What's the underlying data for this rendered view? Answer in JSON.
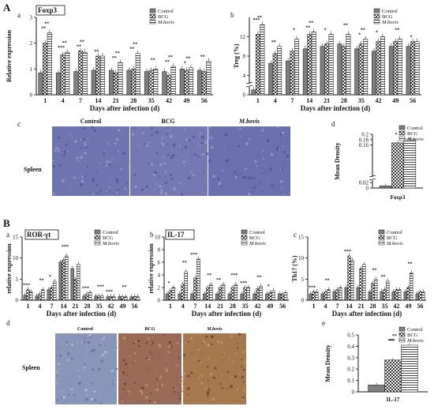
{
  "panel_letters": {
    "A": "A",
    "B": "B"
  },
  "sub_letters": {
    "Aa": "a",
    "Ab": "b",
    "Ac": "c",
    "Ad": "d",
    "Ba": "a",
    "Bb": "b",
    "Bc": "c",
    "Bd": "d",
    "Be": "e"
  },
  "histology": {
    "cols_A": [
      "Control",
      "BCG",
      "M.bovis"
    ],
    "cols_B": [
      "Control",
      "BCG",
      "M.bovis"
    ],
    "row_label": "Spleen",
    "colors": {
      "A": "#6e74b0",
      "B_control": "#8a96b8",
      "B_bcg": "#9a6a58",
      "B_mbovis": "#a6784e"
    }
  },
  "colors": {
    "control": "#7f7f7f",
    "bcg": "#ffffff",
    "mbovis": "#ffffff",
    "axis": "#111111"
  },
  "chart_data": [
    {
      "id": "Aa",
      "type": "bar",
      "title": "Foxp3",
      "xlabel": "Days after infection (d)",
      "ylabel": "Relative expression",
      "ylim": [
        0,
        3
      ],
      "yticks": [
        0,
        1,
        2,
        3
      ],
      "categories": [
        "1",
        "4",
        "7",
        "14",
        "21",
        "28",
        "35",
        "42",
        "49",
        "56"
      ],
      "legend": [
        "Control",
        "BCG",
        "M.bovis"
      ],
      "legend_position": "top-right",
      "series": [
        {
          "name": "Control",
          "values": [
            0.85,
            0.85,
            0.9,
            0.95,
            0.95,
            0.95,
            0.9,
            0.9,
            1.0,
            0.95
          ]
        },
        {
          "name": "BCG",
          "values": [
            2.0,
            1.55,
            1.7,
            1.5,
            0.85,
            1.0,
            0.95,
            0.75,
            0.95,
            0.9
          ]
        },
        {
          "name": "M.bovis",
          "values": [
            2.4,
            1.65,
            1.65,
            1.5,
            1.25,
            1.6,
            1.0,
            1.1,
            1.05,
            1.3
          ]
        }
      ],
      "annotations": [
        "**",
        "**",
        "***",
        "**",
        "**",
        "**",
        "**",
        "**",
        "**",
        "**",
        "**",
        "**",
        "**",
        "**",
        "*",
        "**",
        "**"
      ]
    },
    {
      "id": "Ab",
      "type": "bar",
      "title": "",
      "xlabel": "Days after infection (d)",
      "ylabel": "Treg (%)",
      "ylim": [
        0,
        16
      ],
      "yticks": [
        0,
        4,
        8,
        12
      ],
      "axis_break": true,
      "categories": [
        "1",
        "4",
        "7",
        "14",
        "21",
        "28",
        "35",
        "42",
        "49",
        "56"
      ],
      "legend": [
        "Control",
        "BCG",
        "M.bovis"
      ],
      "legend_position": "top-right",
      "series": [
        {
          "name": "Control",
          "values": [
            1.0,
            6.5,
            7.0,
            9.5,
            10.0,
            10.5,
            9.5,
            9.0,
            10.0,
            10.0
          ]
        },
        {
          "name": "BCG",
          "values": [
            12.5,
            8.5,
            9.0,
            12.5,
            10.5,
            10.0,
            10.5,
            11.0,
            11.0,
            11.0
          ]
        },
        {
          "name": "M.bovis",
          "values": [
            14.5,
            10.0,
            11.5,
            13.0,
            12.5,
            12.5,
            11.5,
            12.0,
            11.5,
            11.0
          ]
        }
      ],
      "annotations": [
        "***",
        "**",
        "**",
        "*",
        "**",
        "**",
        "*",
        "**",
        "*",
        "**",
        "*",
        "**",
        "*"
      ]
    },
    {
      "id": "Ad",
      "type": "bar",
      "title": "",
      "xlabel": "Foxp3",
      "ylabel": "Mean Density",
      "ylim": [
        0,
        0.2
      ],
      "yticks": [
        0.0,
        0.02,
        0.16,
        0.18,
        0.2
      ],
      "axis_break": true,
      "categories": [
        "Foxp3"
      ],
      "legend": [
        "Control",
        "BCG",
        "M.bovis"
      ],
      "legend_position": "top-right",
      "series": [
        {
          "name": "Control",
          "values": [
            0.008
          ]
        },
        {
          "name": "BCG",
          "values": [
            0.168
          ]
        },
        {
          "name": "M.bovis",
          "values": [
            0.182
          ]
        }
      ],
      "annotations": [
        "*"
      ]
    },
    {
      "id": "Ba",
      "type": "bar",
      "title": "ROR-γt",
      "xlabel": "Days after infection (d)",
      "ylabel": "relative expression",
      "ylim": [
        0,
        15
      ],
      "yticks": [
        0,
        5,
        10,
        15
      ],
      "categories": [
        "1",
        "4",
        "7",
        "14",
        "21",
        "28",
        "35",
        "42",
        "49",
        "56"
      ],
      "legend": [
        "Control",
        "BCG",
        "M.bovis"
      ],
      "legend_position": "top-right",
      "series": [
        {
          "name": "Control",
          "values": [
            1.2,
            1.0,
            2.5,
            9.0,
            7.5,
            1.0,
            1.0,
            0.8,
            0.9,
            0.8
          ]
        },
        {
          "name": "BCG",
          "values": [
            2.5,
            1.5,
            3.0,
            9.5,
            5.0,
            1.5,
            1.0,
            0.9,
            0.8,
            0.9
          ]
        },
        {
          "name": "M.bovis",
          "values": [
            2.0,
            2.5,
            4.5,
            10.5,
            8.5,
            1.8,
            1.0,
            0.9,
            0.8,
            0.9
          ]
        }
      ],
      "annotations": [
        "***",
        "**",
        "*",
        "***",
        "***",
        "***",
        "***",
        "**"
      ]
    },
    {
      "id": "Bb",
      "type": "bar",
      "title": "IL-17",
      "xlabel": "Days after infection (d)",
      "ylabel": "relative expression",
      "ylim": [
        0,
        10
      ],
      "yticks": [
        0,
        2,
        4,
        6,
        8,
        10
      ],
      "categories": [
        "1",
        "4",
        "7",
        "14",
        "21",
        "28",
        "35",
        "42",
        "49",
        "56"
      ],
      "legend": [
        "Control",
        "BCG",
        "M.bovis"
      ],
      "legend_position": "top-right",
      "series": [
        {
          "name": "Control",
          "values": [
            1.0,
            1.0,
            1.0,
            1.0,
            1.0,
            1.0,
            1.0,
            1.0,
            1.0,
            1.0
          ]
        },
        {
          "name": "BCG",
          "values": [
            1.5,
            2.5,
            3.5,
            2.0,
            2.0,
            2.0,
            2.0,
            1.8,
            1.2,
            1.0
          ]
        },
        {
          "name": "M.bovis",
          "values": [
            2.0,
            4.5,
            6.5,
            2.5,
            2.5,
            2.5,
            2.0,
            2.2,
            1.5,
            1.2
          ]
        }
      ],
      "annotations": [
        "*",
        "**",
        "***",
        "**",
        "**",
        "***",
        "***",
        "**",
        "*"
      ]
    },
    {
      "id": "Bc",
      "type": "bar",
      "title": "",
      "xlabel": "Days after infection (d)",
      "ylabel": "Th17 (%)",
      "ylim": [
        0,
        15
      ],
      "yticks": [
        0,
        5,
        10,
        15
      ],
      "categories": [
        "1",
        "4",
        "7",
        "14",
        "21",
        "28",
        "35",
        "42",
        "49",
        "56"
      ],
      "legend": [
        "Control",
        "BCG",
        "M.bovis"
      ],
      "legend_position": "top-right",
      "series": [
        {
          "name": "Control",
          "values": [
            1.5,
            1.5,
            2.0,
            3.0,
            3.0,
            2.0,
            2.0,
            2.0,
            2.0,
            1.5
          ]
        },
        {
          "name": "BCG",
          "values": [
            2.0,
            2.0,
            2.5,
            10.5,
            7.5,
            4.0,
            2.5,
            2.5,
            3.0,
            2.0
          ]
        },
        {
          "name": "M.bovis",
          "values": [
            2.0,
            2.5,
            3.0,
            9.5,
            8.5,
            5.0,
            4.5,
            2.5,
            6.5,
            2.0
          ]
        }
      ],
      "annotations": [
        "***",
        "**",
        "***",
        "**",
        "**",
        "**"
      ]
    },
    {
      "id": "Be",
      "type": "bar",
      "title": "",
      "xlabel": "IL-17",
      "ylabel": "Mean Density",
      "ylim": [
        0,
        0.5
      ],
      "yticks": [
        0.0,
        0.1,
        0.2,
        0.3,
        0.4,
        0.5
      ],
      "categories": [
        "IL-17"
      ],
      "legend": [
        "Control",
        "BCG",
        "M.bovis"
      ],
      "legend_position": "top-right",
      "series": [
        {
          "name": "Control",
          "values": [
            0.06
          ]
        },
        {
          "name": "BCG",
          "values": [
            0.28
          ]
        },
        {
          "name": "M.bovis",
          "values": [
            0.41
          ]
        }
      ],
      "annotations": [
        "**",
        "**",
        "***"
      ]
    }
  ]
}
